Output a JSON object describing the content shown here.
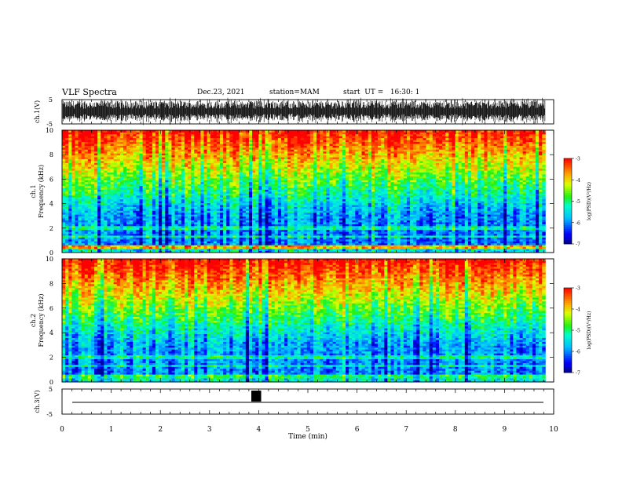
{
  "header": {
    "title": "VLF Spectra",
    "date": "Dec.23, 2021",
    "station": "station=MAM",
    "start": "start  UT =   16:30: 1"
  },
  "chart_data": [
    {
      "type": "line",
      "name": "ch1-waveform",
      "ylabel": "ch.1(V)",
      "ylim": [
        -5,
        5
      ],
      "yticks": [
        "5",
        "-5"
      ],
      "x_range_min": [
        0,
        9.83
      ]
    },
    {
      "type": "heatmap",
      "name": "ch1-spectrogram",
      "ylabel_top": "ch.1",
      "ylabel": "Frequency (kHz)",
      "ylim": [
        0,
        10
      ],
      "yticks": [
        "0",
        "2",
        "4",
        "6",
        "8",
        "10"
      ],
      "colorbar": {
        "label": "log(PSD)(V²/Hz)",
        "ticks": [
          "-3",
          "-4",
          "-5",
          "-6",
          "-7"
        ],
        "range": [
          -7,
          -3
        ]
      }
    },
    {
      "type": "heatmap",
      "name": "ch2-spectrogram",
      "ylabel_top": "ch.2",
      "ylabel": "Frequency (kHz)",
      "ylim": [
        0,
        10
      ],
      "yticks": [
        "0",
        "2",
        "4",
        "6",
        "8",
        "10"
      ],
      "colorbar": {
        "label": "log(PSD)(V²/Hz)",
        "ticks": [
          "-3",
          "-4",
          "-5",
          "-6",
          "-7"
        ],
        "range": [
          -7,
          -3
        ]
      }
    },
    {
      "type": "line",
      "name": "ch3-waveform",
      "ylabel": "ch.3(V)",
      "ylim": [
        -5,
        5
      ],
      "yticks": [
        "5",
        "-5"
      ],
      "pulse_min": [
        3.85,
        4.05
      ]
    }
  ],
  "xaxis": {
    "label": "Time (min)",
    "xlim": [
      0,
      10
    ],
    "ticks": [
      "0",
      "1",
      "2",
      "3",
      "4",
      "5",
      "6",
      "7",
      "8",
      "9",
      "10"
    ]
  }
}
